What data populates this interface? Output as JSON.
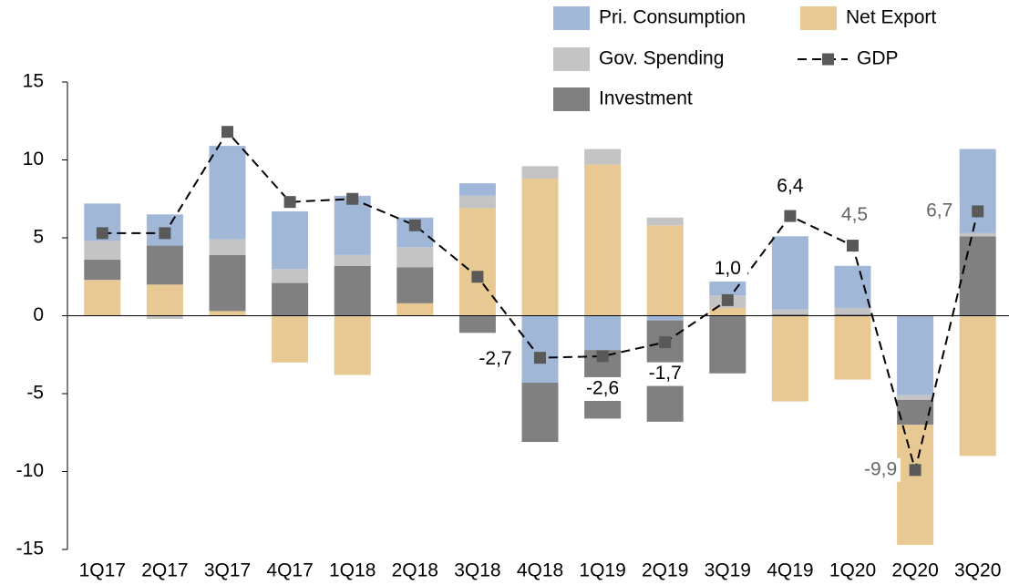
{
  "chart_data": {
    "type": "bar",
    "categories": [
      "1Q17",
      "2Q17",
      "3Q17",
      "4Q17",
      "1Q18",
      "2Q18",
      "3Q18",
      "4Q18",
      "1Q19",
      "2Q19",
      "3Q19",
      "4Q19",
      "1Q20",
      "2Q20",
      "3Q20"
    ],
    "series": [
      {
        "name": "Pri. Consumption",
        "color": "#a1b7d7",
        "values": [
          2.4,
          2.0,
          6.0,
          3.7,
          3.8,
          1.9,
          0.8,
          -4.3,
          -2.2,
          -0.3,
          0.9,
          4.7,
          2.7,
          -5.1,
          5.4
        ]
      },
      {
        "name": "Gov. Spending",
        "color": "#c4c4c4",
        "values": [
          1.2,
          -0.2,
          1.0,
          0.9,
          0.7,
          1.3,
          0.8,
          0.8,
          1.0,
          0.5,
          0.8,
          0.3,
          0.4,
          -0.3,
          0.2
        ]
      },
      {
        "name": "Investment",
        "color": "#808080",
        "values": [
          1.3,
          2.5,
          3.6,
          2.1,
          3.2,
          2.3,
          -1.1,
          -3.8,
          -4.4,
          -6.5,
          -3.7,
          0.1,
          0.1,
          -1.6,
          5.1
        ]
      },
      {
        "name": "Net Export",
        "color": "#e8c993",
        "values": [
          2.3,
          2.0,
          0.3,
          -3.0,
          -3.8,
          0.8,
          6.9,
          8.8,
          9.7,
          5.8,
          0.5,
          -5.5,
          -4.1,
          -7.7,
          -9.0
        ]
      },
      {
        "name": "GDP",
        "type": "line",
        "color": "#595959",
        "values": [
          5.3,
          5.3,
          11.8,
          7.3,
          7.5,
          5.8,
          2.5,
          -2.7,
          -2.6,
          -1.7,
          1.0,
          6.4,
          4.5,
          -9.9,
          6.7
        ],
        "value_labels": [
          null,
          null,
          null,
          null,
          null,
          null,
          null,
          "-2,7",
          "-2,6",
          "-1,7",
          "1,0",
          "6,4",
          "4,5",
          "-9,9",
          "6,7"
        ]
      }
    ],
    "ylim": [
      -15,
      15
    ],
    "yticks": [
      -15,
      -10,
      -5,
      0,
      5,
      10,
      15
    ],
    "grid": false
  }
}
